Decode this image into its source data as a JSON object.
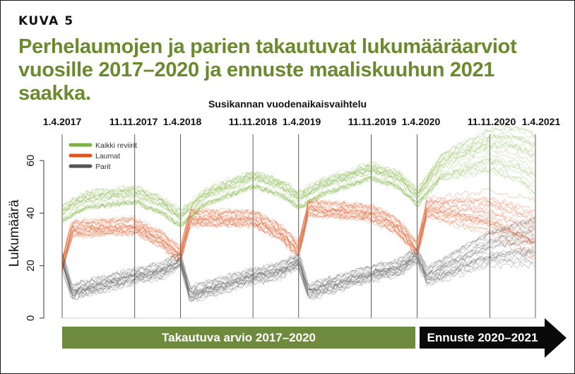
{
  "figure_label": "KUVA 5",
  "title": "Perhelaumojen ja parien takautuvat lukumääräarviot vuosille 2017–2020 ja ennuste maaliskuuhun 2021 saakka.",
  "season_header": "Susikannan vuodenaikaisvaihtelu",
  "dates": [
    "1.4.2017",
    "11.11.2017",
    "1.4.2018",
    "11.11.2018",
    "1.4.2019",
    "11.11.2019",
    "1.4.2020",
    "11.11.2020",
    "1.4.2021"
  ],
  "bars": {
    "past_label": "Takautuva arvio 2017–2020",
    "forecast_label": "Ennuste 2020–2021"
  },
  "colors": {
    "kaikki": "#7cb342",
    "laumat": "#e0541b",
    "parit": "#555555",
    "title": "#6b8a2e"
  },
  "chart_data": {
    "type": "line",
    "ylabel": "Lukumäärä",
    "ylim": [
      0,
      70
    ],
    "yticks": [
      0,
      20,
      40,
      60
    ],
    "x_range": [
      "1.4.2017",
      "1.4.2021"
    ],
    "legend_position": "top-left",
    "series": [
      {
        "name": "Kaikki reviirit",
        "color": "#7cb342",
        "points": [
          [
            "1.4.2017",
            40
          ],
          [
            "15.6.2017",
            45
          ],
          [
            "11.11.2017",
            47
          ],
          [
            "1.2.2018",
            43
          ],
          [
            "1.4.2018",
            38
          ],
          [
            "15.6.2018",
            46
          ],
          [
            "11.11.2018",
            53
          ],
          [
            "1.2.2019",
            50
          ],
          [
            "1.4.2019",
            45
          ],
          [
            "15.6.2019",
            50
          ],
          [
            "11.11.2019",
            56
          ],
          [
            "1.2.2020",
            53
          ],
          [
            "1.4.2020",
            46
          ],
          [
            "15.6.2020",
            58
          ],
          [
            "11.11.2020",
            65
          ],
          [
            "1.2.2021",
            64
          ],
          [
            "1.4.2021",
            60
          ]
        ]
      },
      {
        "name": "Laumat",
        "color": "#e0541b",
        "points": [
          [
            "1.4.2017",
            20
          ],
          [
            "1.5.2017",
            34
          ],
          [
            "11.11.2017",
            35
          ],
          [
            "1.2.2018",
            30
          ],
          [
            "1.4.2018",
            24
          ],
          [
            "1.5.2018",
            38
          ],
          [
            "11.11.2018",
            38
          ],
          [
            "1.2.2019",
            33
          ],
          [
            "1.4.2019",
            26
          ],
          [
            "1.5.2019",
            42
          ],
          [
            "11.11.2019",
            40
          ],
          [
            "1.2.2020",
            35
          ],
          [
            "1.4.2020",
            26
          ],
          [
            "1.5.2020",
            42
          ],
          [
            "11.11.2020",
            40
          ],
          [
            "1.2.2021",
            36
          ],
          [
            "1.4.2021",
            33
          ]
        ]
      },
      {
        "name": "Parit",
        "color": "#555555",
        "points": [
          [
            "1.4.2017",
            22
          ],
          [
            "1.5.2017",
            10
          ],
          [
            "11.11.2017",
            16
          ],
          [
            "1.2.2018",
            18
          ],
          [
            "1.4.2018",
            22
          ],
          [
            "1.5.2018",
            9
          ],
          [
            "11.11.2018",
            16
          ],
          [
            "1.2.2019",
            18
          ],
          [
            "1.4.2019",
            22
          ],
          [
            "1.5.2019",
            10
          ],
          [
            "11.11.2019",
            17
          ],
          [
            "1.2.2020",
            19
          ],
          [
            "1.4.2020",
            24
          ],
          [
            "1.5.2020",
            16
          ],
          [
            "11.11.2020",
            27
          ],
          [
            "1.2.2021",
            29
          ],
          [
            "1.4.2021",
            30
          ]
        ]
      }
    ]
  }
}
